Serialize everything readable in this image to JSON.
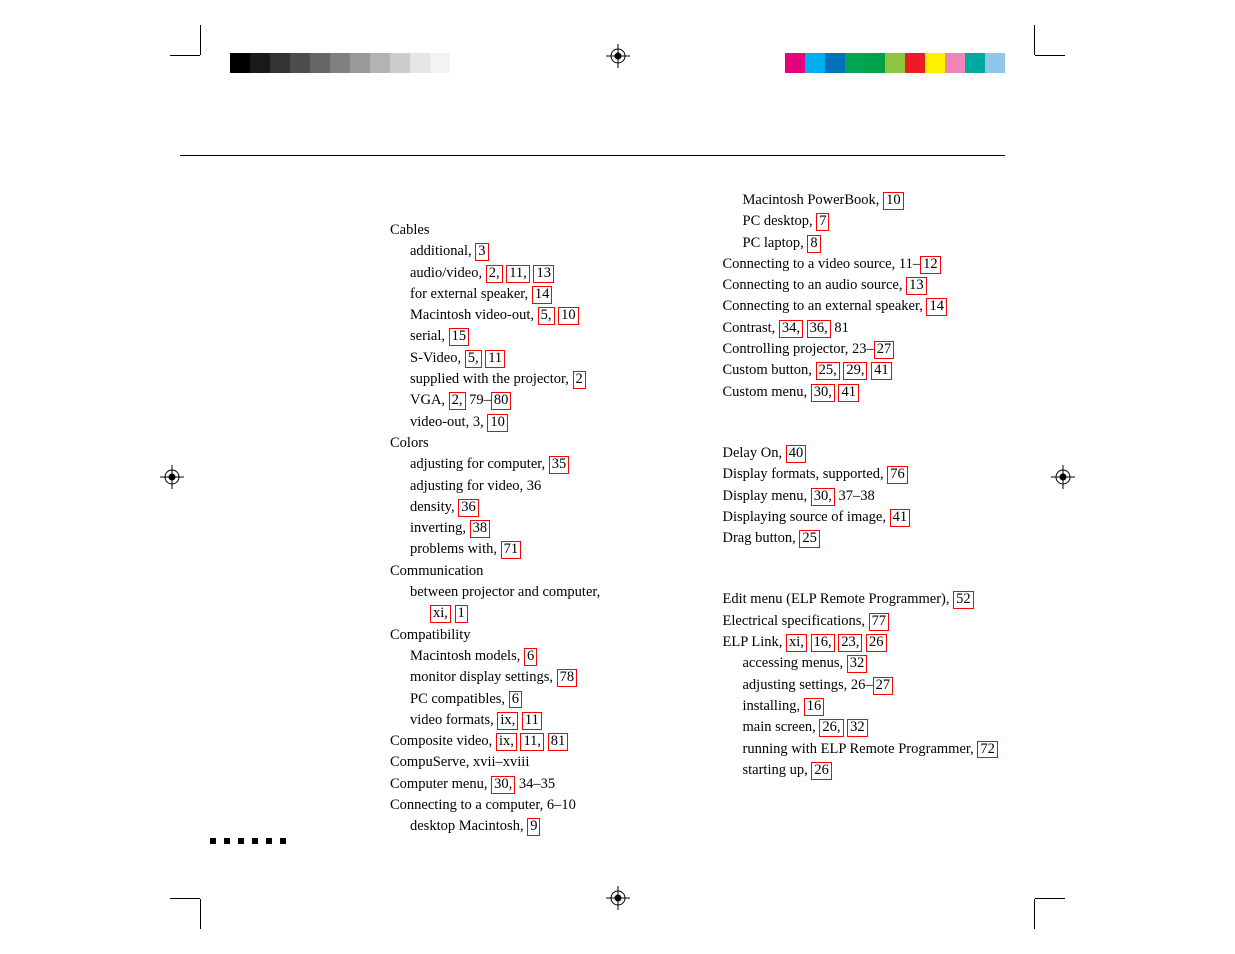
{
  "grayscale": [
    "#000000",
    "#1a1a1a",
    "#333333",
    "#4d4d4d",
    "#666666",
    "#808080",
    "#999999",
    "#b3b3b3",
    "#cccccc",
    "#e6e6e6",
    "#f3f3f3",
    "#ffffff"
  ],
  "colorbar": [
    "#ffffff",
    "#e6007e",
    "#00aeef",
    "#0072bc",
    "#00a651",
    "#00a14b",
    "#8dc63f",
    "#ed1c24",
    "#fff200",
    "#ef84b6",
    "#00a99d",
    "#92c5eb"
  ],
  "left": {
    "c": {
      "cables": "Cables",
      "additional": "additional,  ",
      "additional_p": "3",
      "av": "audio/video,  ",
      "av_p1": "2,",
      "av_p2": "11,",
      "av_p3": "13",
      "ext_spk": "for external speaker,  ",
      "ext_spk_p": "14",
      "mac_vo": "Macintosh video-out,  ",
      "mac_vo_p1": "5,",
      "mac_vo_p2": "10",
      "serial": "serial,  ",
      "serial_p": "15",
      "svideo": "S-Video,  ",
      "svideo_p1": "5,",
      "svideo_p2": "11",
      "supplied": "supplied with the projector,  ",
      "supplied_p": "2",
      "vga": "VGA,  ",
      "vga_p1": "2,",
      "vga_txt": " 79–",
      "vga_p2": "80",
      "video_out": "video-out,  3,  ",
      "video_out_p": "10",
      "colors": "Colors",
      "adj_comp": "adjusting for computer,  ",
      "adj_comp_p": "35",
      "adj_vid": "adjusting for video,  36",
      "density": "density,  ",
      "density_p": "36",
      "inverting": "inverting,  ",
      "inverting_p": "38",
      "problems": "problems with,  ",
      "problems_p": "71",
      "comm": "Communication",
      "between": "between projector and computer,",
      "between_p1": "xi,",
      "between_p2": "1",
      "compat": "Compatibility",
      "mac_models": "Macintosh models,  ",
      "mac_models_p": "6",
      "mon_disp": "monitor display settings,  ",
      "mon_disp_p": "78",
      "pc_compat": "PC compatibles,  ",
      "pc_compat_p": "6",
      "vid_fmt": "video formats,  ",
      "vid_fmt_p1": "ix,",
      "vid_fmt_p2": "11",
      "compvid": "Composite video,  ",
      "compvid_p1": "ix,",
      "compvid_p2": "11,",
      "compvid_p3": "81",
      "compuserve": "CompuServe,  xvii–xviii",
      "compmenu": "Computer menu,  ",
      "compmenu_p": "30,",
      "compmenu_txt": " 34–35",
      "conncomp": "Connecting to a computer,  6–10",
      "desk_mac": "desktop Macintosh,  ",
      "desk_mac_p": "9"
    }
  },
  "right": {
    "c": {
      "mac_pb": "Macintosh PowerBook,  ",
      "mac_pb_p": "10",
      "pc_desk": "PC desktop,  ",
      "pc_desk_p": "7",
      "pc_laptop": "PC laptop,  ",
      "pc_laptop_p": "8",
      "conn_vid": "Connecting to a video source,  11–",
      "conn_vid_p": "12",
      "conn_aud": "Connecting to an audio source,  ",
      "conn_aud_p": "13",
      "conn_ext": "Connecting to an external speaker,  ",
      "conn_ext_p": "14",
      "contrast": "Contrast,  ",
      "contrast_p1": "34,",
      "contrast_p2": "36,",
      "contrast_txt": " 81",
      "ctrl_proj": "Controlling projector,  23–",
      "ctrl_proj_p": "27",
      "cust_btn": "Custom button,  ",
      "cust_btn_p1": "25,",
      "cust_btn_p2": "29,",
      "cust_btn_p3": "41",
      "cust_menu": "Custom menu,  ",
      "cust_menu_p1": "30,",
      "cust_menu_p2": "41"
    },
    "d": {
      "delay": "Delay On,  ",
      "delay_p": "40",
      "disp_fmt": "Display formats, supported,  ",
      "disp_fmt_p": "76",
      "disp_menu": "Display menu,  ",
      "disp_menu_p": "30,",
      "disp_menu_txt": " 37–38",
      "disp_src": "Displaying source of image,  ",
      "disp_src_p": "41",
      "drag": "Drag button,  ",
      "drag_p": "25"
    },
    "e": {
      "edit_menu": "Edit menu (ELP Remote Programmer),  ",
      "edit_menu_p": "52",
      "elec": "Electrical specifications,  ",
      "elec_p": "77",
      "elp": "ELP Link,  ",
      "elp_p1": "xi,",
      "elp_p2": "16,",
      "elp_p3": "23,",
      "elp_p4": "26",
      "acc_menus": "accessing menus,  ",
      "acc_menus_p": "32",
      "adj_set": "adjusting settings,  26–",
      "adj_set_p": "27",
      "installing": "installing,  ",
      "installing_p": "16",
      "main_scr": "main screen,  ",
      "main_scr_p1": "26,",
      "main_scr_p2": "32",
      "running": "running with ELP Remote Programmer,  ",
      "running_p": "72",
      "starting": "starting up,  ",
      "starting_p": "26"
    }
  }
}
